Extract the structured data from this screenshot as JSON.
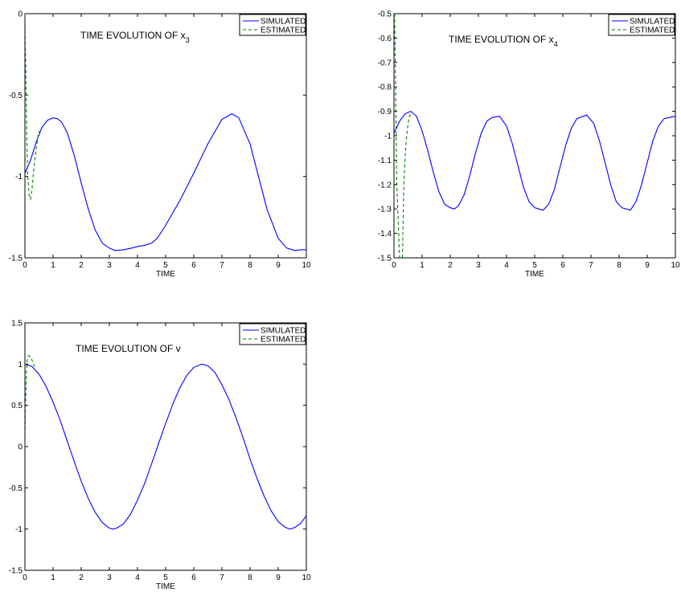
{
  "chart_data": [
    {
      "type": "line",
      "title": "TIME EVOLUTION OF x",
      "title_subscript": "3",
      "xlabel": "TIME",
      "ylabel": "",
      "xlim": [
        0,
        10
      ],
      "ylim": [
        -1.5,
        0
      ],
      "xticks": [
        0,
        1,
        2,
        3,
        4,
        5,
        6,
        7,
        8,
        9,
        10
      ],
      "yticks": [
        0,
        -0.5,
        -1,
        -1.5
      ],
      "ytick_labels": [
        "0",
        "-0.5",
        "-1",
        "-1.5"
      ],
      "legend_position": "top-right",
      "grid": false,
      "series": [
        {
          "name": "SIMULATED",
          "color": "#0000ff",
          "style": "solid",
          "x": [
            0,
            0.2,
            0.4,
            0.6,
            0.8,
            1.0,
            1.15,
            1.3,
            1.5,
            1.75,
            2.0,
            2.25,
            2.5,
            2.75,
            3.0,
            3.2,
            3.5,
            3.8,
            4.0,
            4.2,
            4.5,
            4.7,
            5.0,
            5.5,
            6.0,
            6.5,
            7.0,
            7.35,
            7.6,
            8.0,
            8.3,
            8.6,
            9.0,
            9.3,
            9.6,
            9.8,
            10.0
          ],
          "y": [
            -0.98,
            -0.9,
            -0.79,
            -0.7,
            -0.655,
            -0.64,
            -0.645,
            -0.665,
            -0.73,
            -0.87,
            -1.04,
            -1.2,
            -1.33,
            -1.41,
            -1.44,
            -1.455,
            -1.45,
            -1.44,
            -1.43,
            -1.425,
            -1.41,
            -1.38,
            -1.3,
            -1.15,
            -0.98,
            -0.8,
            -0.65,
            -0.615,
            -0.64,
            -0.8,
            -1.0,
            -1.2,
            -1.38,
            -1.44,
            -1.455,
            -1.45,
            -1.45
          ]
        },
        {
          "name": "ESTIMATED",
          "color": "#008000",
          "style": "dashed",
          "x": [
            0,
            0.03,
            0.06,
            0.1,
            0.15,
            0.2,
            0.25,
            0.3,
            0.35,
            0.4,
            0.45,
            0.5
          ],
          "y": [
            0,
            -0.35,
            -0.7,
            -1.0,
            -1.12,
            -1.14,
            -1.08,
            -0.98,
            -0.9,
            -0.83,
            -0.77,
            -0.72
          ]
        }
      ]
    },
    {
      "type": "line",
      "title": "TIME EVOLUTION OF x",
      "title_subscript": "4",
      "xlabel": "TIME",
      "ylabel": "",
      "xlim": [
        0,
        10
      ],
      "ylim": [
        -1.5,
        -0.5
      ],
      "xticks": [
        0,
        1,
        2,
        3,
        4,
        5,
        6,
        7,
        8,
        9,
        10
      ],
      "yticks": [
        -0.5,
        -0.6,
        -0.7,
        -0.8,
        -0.9,
        -1,
        -1.1,
        -1.2,
        -1.3,
        -1.4,
        -1.5
      ],
      "ytick_labels": [
        "-0.5",
        "-0.6",
        "-0.7",
        "-0.8",
        "-0.9",
        "-1",
        "-1.1",
        "-1.2",
        "-1.3",
        "-1.4",
        "-1.5"
      ],
      "legend_position": "top-right",
      "grid": false,
      "series": [
        {
          "name": "SIMULATED",
          "color": "#0000ff",
          "style": "solid",
          "x": [
            0,
            0.2,
            0.4,
            0.6,
            0.8,
            1.0,
            1.2,
            1.4,
            1.6,
            1.8,
            2.0,
            2.15,
            2.3,
            2.5,
            2.7,
            2.9,
            3.1,
            3.3,
            3.5,
            3.75,
            4.0,
            4.2,
            4.4,
            4.6,
            4.8,
            5.0,
            5.3,
            5.5,
            5.7,
            5.9,
            6.1,
            6.3,
            6.5,
            6.85,
            7.1,
            7.3,
            7.5,
            7.7,
            7.9,
            8.1,
            8.4,
            8.6,
            8.8,
            9.0,
            9.2,
            9.4,
            9.6,
            9.8,
            10.0
          ],
          "y": [
            -0.99,
            -0.94,
            -0.91,
            -0.9,
            -0.92,
            -0.98,
            -1.06,
            -1.15,
            -1.23,
            -1.28,
            -1.295,
            -1.3,
            -1.285,
            -1.24,
            -1.16,
            -1.07,
            -0.99,
            -0.94,
            -0.925,
            -0.92,
            -0.96,
            -1.03,
            -1.12,
            -1.21,
            -1.27,
            -1.295,
            -1.305,
            -1.28,
            -1.22,
            -1.13,
            -1.04,
            -0.97,
            -0.93,
            -0.915,
            -0.95,
            -1.02,
            -1.11,
            -1.2,
            -1.27,
            -1.295,
            -1.305,
            -1.27,
            -1.2,
            -1.11,
            -1.02,
            -0.96,
            -0.93,
            -0.925,
            -0.92
          ]
        },
        {
          "name": "ESTIMATED",
          "color": "#008000",
          "style": "dashed",
          "x": [
            0.02,
            0.05,
            0.1,
            0.2,
            0.25,
            0.3,
            0.35,
            0.4,
            0.45,
            0.5,
            0.55,
            0.6
          ],
          "y": [
            -0.5,
            -0.75,
            -1.2,
            -1.5,
            -1.5,
            -1.5,
            -1.2,
            -1.08,
            -1.0,
            -0.95,
            -0.92,
            -0.91
          ]
        }
      ]
    },
    {
      "type": "line",
      "title": "TIME EVOLUTION OF v",
      "title_subscript": "",
      "xlabel": "TIME",
      "ylabel": "",
      "xlim": [
        0,
        10
      ],
      "ylim": [
        -1.5,
        1.5
      ],
      "xticks": [
        0,
        1,
        2,
        3,
        4,
        5,
        6,
        7,
        8,
        9,
        10
      ],
      "yticks": [
        1.5,
        1,
        0.5,
        0,
        -0.5,
        -1,
        -1.5
      ],
      "ytick_labels": [
        "1.5",
        "1",
        "0.5",
        "0",
        "-0.5",
        "-1",
        "-1.5"
      ],
      "legend_position": "top-right",
      "grid": false,
      "series": [
        {
          "name": "SIMULATED",
          "color": "#0000ff",
          "style": "solid",
          "x": [
            0,
            0.25,
            0.5,
            0.75,
            1.0,
            1.25,
            1.5,
            1.75,
            2.0,
            2.25,
            2.5,
            2.75,
            3.0,
            3.14,
            3.25,
            3.5,
            3.75,
            4.0,
            4.25,
            4.5,
            4.75,
            5.0,
            5.25,
            5.5,
            5.75,
            6.0,
            6.28,
            6.5,
            6.75,
            7.0,
            7.25,
            7.5,
            7.75,
            8.0,
            8.25,
            8.5,
            8.75,
            9.0,
            9.25,
            9.42,
            9.6,
            9.8,
            10.0
          ],
          "y": [
            1.0,
            0.97,
            0.88,
            0.73,
            0.54,
            0.32,
            0.07,
            -0.18,
            -0.42,
            -0.63,
            -0.8,
            -0.92,
            -0.99,
            -1.0,
            -0.99,
            -0.94,
            -0.82,
            -0.65,
            -0.45,
            -0.21,
            0.04,
            0.28,
            0.51,
            0.71,
            0.86,
            0.96,
            1.0,
            0.98,
            0.9,
            0.75,
            0.57,
            0.35,
            0.11,
            -0.15,
            -0.39,
            -0.6,
            -0.78,
            -0.91,
            -0.98,
            -1.0,
            -0.98,
            -0.93,
            -0.84
          ]
        },
        {
          "name": "ESTIMATED",
          "color": "#008000",
          "style": "dashed",
          "x": [
            0,
            0.02,
            0.05,
            0.08,
            0.12,
            0.16,
            0.2,
            0.25,
            0.3,
            0.35
          ],
          "y": [
            0,
            0.5,
            0.9,
            1.05,
            1.1,
            1.1,
            1.08,
            1.05,
            1.0,
            0.97
          ]
        }
      ]
    }
  ]
}
